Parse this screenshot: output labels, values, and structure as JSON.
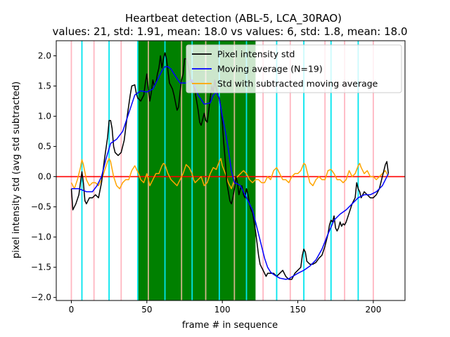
{
  "chart_data": {
    "type": "line",
    "title": "Heartbeat detection (ABL-5, LCA_30RAO)",
    "subtitle": "values: 21, std: 1.91, mean: 18.0 vs values: 6, std: 1.8, mean: 18.0",
    "xlabel": "frame # in sequence",
    "ylabel": "pixel intensity std (avg std subtracted)",
    "xlim": [
      -10,
      221
    ],
    "ylim": [
      -2.05,
      2.25
    ],
    "xticks": [
      0,
      50,
      100,
      150,
      200
    ],
    "xtick_labels": [
      "0",
      "50",
      "100",
      "150",
      "200"
    ],
    "yticks": [
      -2.0,
      -1.5,
      -1.0,
      -0.5,
      0.0,
      0.5,
      1.0,
      1.5,
      2.0
    ],
    "ytick_labels": [
      "−2.0",
      "−1.5",
      "−1.0",
      "−0.5",
      "0.0",
      "0.5",
      "1.0",
      "1.5",
      "2.0"
    ],
    "green_span": [
      44,
      122
    ],
    "zero_line": {
      "y": 0.0,
      "color": "#ff0000"
    },
    "vlines": {
      "pink": {
        "color": "#ffb6c1",
        "x": [
          0,
          15,
          33,
          127,
          145,
          168,
          181,
          200
        ]
      },
      "cyan": {
        "color": "#00e5ee",
        "x": [
          7,
          25,
          44,
          62,
          80,
          98,
          116,
          136,
          154,
          172,
          190
        ]
      },
      "tan": {
        "color": "#d2b48c",
        "x": [
          51,
          73,
          89,
          108
        ]
      }
    },
    "legend": {
      "position": "top-right",
      "entries": [
        {
          "label": "Pixel intensity std",
          "color": "#000000"
        },
        {
          "label": "Moving average (N=19)",
          "color": "#0000ff"
        },
        {
          "label": "Std with subtracted moving average",
          "color": "#ffa500"
        }
      ]
    },
    "series": [
      {
        "name": "Pixel intensity std",
        "color": "#000000",
        "x": [
          0,
          1,
          3,
          5,
          6,
          7,
          8,
          9,
          10,
          12,
          14,
          16,
          18,
          20,
          22,
          24,
          25,
          26,
          27,
          28,
          29,
          31,
          33,
          35,
          37,
          39,
          40,
          42,
          43,
          44,
          46,
          48,
          49,
          50,
          51,
          52,
          53,
          54,
          55,
          56,
          57,
          58,
          59,
          60,
          61,
          62,
          63,
          64,
          65,
          66,
          67,
          68,
          70,
          71,
          72,
          73,
          74,
          75,
          76,
          77,
          78,
          79,
          80,
          81,
          82,
          83,
          84,
          85,
          86,
          87,
          88,
          89,
          90,
          91,
          92,
          93,
          94,
          95,
          96,
          97,
          98,
          99,
          100,
          101,
          102,
          103,
          104,
          105,
          106,
          107,
          108,
          109,
          110,
          111,
          112,
          113,
          114,
          115,
          116,
          117,
          118,
          119,
          120,
          121,
          122,
          123,
          124,
          125,
          126,
          127,
          128,
          129,
          130,
          132,
          134,
          136,
          138,
          140,
          142,
          144,
          146,
          148,
          150,
          152,
          153,
          154,
          155,
          156,
          158,
          160,
          162,
          164,
          166,
          168,
          170,
          171,
          172,
          173,
          174,
          175,
          176,
          177,
          178,
          179,
          180,
          181,
          182,
          184,
          186,
          188,
          189,
          190,
          191,
          192,
          193,
          194,
          196,
          198,
          200,
          202,
          204,
          206,
          208,
          209,
          210
        ],
        "y": [
          -0.2,
          -0.55,
          -0.45,
          -0.3,
          -0.1,
          0.08,
          -0.1,
          -0.4,
          -0.45,
          -0.35,
          -0.35,
          -0.3,
          -0.35,
          -0.1,
          0.3,
          0.65,
          0.93,
          0.93,
          0.8,
          0.5,
          0.4,
          0.35,
          0.4,
          0.6,
          1.0,
          1.35,
          1.5,
          1.52,
          1.38,
          1.3,
          1.25,
          1.35,
          1.55,
          1.7,
          1.45,
          1.25,
          1.4,
          1.6,
          1.5,
          1.55,
          1.7,
          1.8,
          2.0,
          1.8,
          1.95,
          2.05,
          1.95,
          1.75,
          1.55,
          1.5,
          1.45,
          1.35,
          1.1,
          1.15,
          1.4,
          1.6,
          1.7,
          1.95,
          1.95,
          1.88,
          1.75,
          1.6,
          1.55,
          1.55,
          1.4,
          1.25,
          1.1,
          0.9,
          0.85,
          0.95,
          1.05,
          0.93,
          0.9,
          1.1,
          1.3,
          1.5,
          1.4,
          1.6,
          1.45,
          1.35,
          1.3,
          1.15,
          0.9,
          0.55,
          0.25,
          -0.1,
          -0.25,
          -0.4,
          -0.45,
          -0.35,
          -0.2,
          0.0,
          -0.1,
          -0.3,
          -0.2,
          -0.15,
          -0.3,
          -0.35,
          -0.2,
          -0.3,
          -0.45,
          -0.55,
          -0.6,
          -0.75,
          -0.9,
          -1.1,
          -1.3,
          -1.45,
          -1.5,
          -1.55,
          -1.6,
          -1.65,
          -1.6,
          -1.6,
          -1.6,
          -1.65,
          -1.6,
          -1.55,
          -1.65,
          -1.7,
          -1.7,
          -1.6,
          -1.55,
          -1.5,
          -1.3,
          -1.2,
          -1.25,
          -1.4,
          -1.45,
          -1.45,
          -1.42,
          -1.35,
          -1.3,
          -1.15,
          -0.95,
          -0.8,
          -0.72,
          -0.75,
          -0.65,
          -0.85,
          -0.9,
          -0.85,
          -0.75,
          -0.82,
          -0.78,
          -0.8,
          -0.75,
          -0.6,
          -0.45,
          -0.35,
          -0.1,
          -0.2,
          -0.25,
          -0.35,
          -0.3,
          -0.25,
          -0.3,
          -0.35,
          -0.35,
          -0.3,
          -0.2,
          0.0,
          0.2,
          0.25,
          0.05
        ]
      },
      {
        "name": "Moving average (N=19)",
        "color": "#0000ff",
        "x": [
          0,
          5,
          10,
          14,
          17,
          20,
          23,
          26,
          30,
          34,
          38,
          42,
          46,
          50,
          54,
          58,
          60,
          62,
          64,
          66,
          68,
          72,
          76,
          80,
          84,
          88,
          92,
          94,
          96,
          98,
          100,
          102,
          104,
          106,
          108,
          110,
          112,
          114,
          116,
          118,
          120,
          122,
          124,
          126,
          128,
          130,
          132,
          134,
          136,
          138,
          140,
          142,
          144,
          146,
          148,
          150,
          154,
          158,
          162,
          166,
          170,
          174,
          178,
          182,
          186,
          190,
          194,
          198,
          202,
          206,
          208,
          210
        ],
        "y": [
          -0.2,
          -0.2,
          -0.25,
          -0.25,
          -0.15,
          0.0,
          0.3,
          0.55,
          0.62,
          0.75,
          1.05,
          1.35,
          1.42,
          1.4,
          1.45,
          1.65,
          1.75,
          1.82,
          1.82,
          1.78,
          1.7,
          1.55,
          1.55,
          1.6,
          1.35,
          1.2,
          1.22,
          1.35,
          1.4,
          1.3,
          1.0,
          0.75,
          0.45,
          0.1,
          -0.1,
          -0.12,
          -0.15,
          -0.25,
          -0.35,
          -0.45,
          -0.55,
          -0.75,
          -0.95,
          -1.15,
          -1.35,
          -1.5,
          -1.58,
          -1.62,
          -1.65,
          -1.68,
          -1.69,
          -1.7,
          -1.69,
          -1.66,
          -1.63,
          -1.6,
          -1.55,
          -1.48,
          -1.38,
          -1.2,
          -0.95,
          -0.72,
          -0.62,
          -0.55,
          -0.45,
          -0.35,
          -0.3,
          -0.3,
          -0.25,
          -0.15,
          -0.05,
          0.05
        ]
      },
      {
        "name": "Std with subtracted moving average",
        "color": "#ffa500",
        "x": [
          0,
          2,
          4,
          6,
          7,
          8,
          10,
          12,
          14,
          16,
          18,
          20,
          22,
          24,
          25,
          26,
          28,
          30,
          32,
          34,
          36,
          38,
          40,
          42,
          44,
          45,
          46,
          48,
          50,
          52,
          54,
          56,
          58,
          60,
          61,
          62,
          64,
          66,
          68,
          70,
          72,
          74,
          76,
          78,
          80,
          81,
          82,
          84,
          86,
          88,
          90,
          92,
          94,
          96,
          98,
          99,
          100,
          102,
          104,
          106,
          108,
          110,
          112,
          114,
          116,
          117,
          118,
          120,
          122,
          124,
          126,
          128,
          130,
          132,
          134,
          136,
          138,
          140,
          142,
          144,
          146,
          148,
          150,
          152,
          154,
          155,
          156,
          158,
          160,
          162,
          164,
          166,
          168,
          170,
          172,
          174,
          176,
          178,
          180,
          182,
          184,
          186,
          188,
          190,
          191,
          192,
          194,
          196,
          198,
          200,
          202,
          204,
          206,
          208,
          210
        ],
        "y": [
          -0.1,
          -0.2,
          -0.05,
          0.15,
          0.28,
          0.2,
          -0.05,
          -0.15,
          -0.1,
          -0.1,
          -0.15,
          -0.05,
          0.1,
          0.25,
          0.3,
          0.25,
          0.0,
          -0.15,
          -0.2,
          -0.1,
          -0.05,
          -0.05,
          0.1,
          0.18,
          0.08,
          0.02,
          -0.05,
          -0.1,
          0.05,
          -0.15,
          -0.05,
          0.05,
          0.05,
          0.18,
          0.22,
          0.2,
          0.05,
          -0.05,
          -0.1,
          -0.15,
          -0.05,
          0.05,
          0.2,
          0.15,
          0.05,
          -0.05,
          -0.1,
          -0.05,
          0.0,
          -0.15,
          -0.1,
          0.05,
          0.15,
          0.12,
          0.25,
          0.3,
          0.18,
          0.05,
          -0.1,
          -0.2,
          -0.05,
          0.0,
          0.05,
          0.1,
          0.05,
          0.0,
          -0.05,
          -0.1,
          -0.05,
          -0.05,
          -0.1,
          -0.1,
          0.0,
          -0.05,
          0.1,
          0.15,
          0.05,
          -0.05,
          -0.05,
          -0.1,
          0.0,
          0.05,
          0.05,
          0.1,
          0.22,
          0.2,
          0.1,
          -0.1,
          -0.15,
          -0.05,
          0.0,
          -0.05,
          -0.05,
          0.1,
          0.12,
          0.05,
          -0.05,
          -0.05,
          -0.1,
          -0.05,
          0.1,
          0.0,
          0.05,
          0.18,
          0.22,
          0.15,
          0.05,
          0.1,
          0.0,
          0.0,
          -0.05,
          0.0,
          0.05,
          0.1,
          0.0
        ]
      }
    ]
  }
}
